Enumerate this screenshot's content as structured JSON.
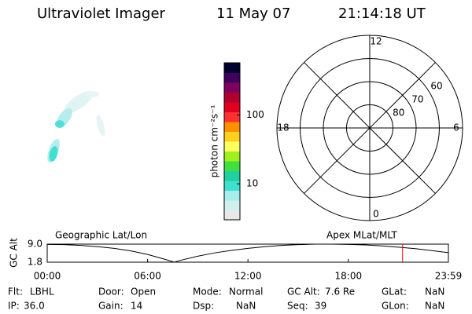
{
  "header": {
    "instrument": "Ultraviolet Imager",
    "date": "11 May 07",
    "time": "21:14:18 UT"
  },
  "chart_data": [
    {
      "type": "colorbar",
      "label": "photon cm⁻²s⁻¹",
      "log_scale": true,
      "ylim": [
        3,
        575
      ],
      "yticks": [
        10,
        100
      ],
      "colors": [
        "#e8e8e8",
        "#d0f0f0",
        "#a8ecec",
        "#40e0d0",
        "#20d0a0",
        "#40e040",
        "#a0f020",
        "#ffff60",
        "#ffd020",
        "#ff9000",
        "#ff3030",
        "#e00020",
        "#b00030",
        "#800060",
        "#400060",
        "#000030"
      ]
    },
    {
      "type": "polar",
      "mlt_ticks": [
        12,
        6,
        0,
        18
      ],
      "rlim": [
        90,
        50
      ],
      "rticks": [
        80,
        70,
        60
      ]
    },
    {
      "type": "line",
      "title_left": "Geographic Lat/Lon",
      "title_right": "Apex MLat/MLT",
      "ylabel": "GC Alt",
      "x": [
        0,
        1,
        2,
        3,
        4,
        5,
        6,
        7,
        7.6,
        8,
        9,
        10,
        11,
        12,
        13,
        14,
        15,
        16,
        17,
        18,
        19,
        20,
        21,
        22,
        23,
        23.98
      ],
      "values": [
        8.9,
        8.8,
        8.5,
        8.0,
        7.3,
        6.3,
        4.9,
        3.0,
        1.8,
        2.6,
        4.2,
        5.5,
        6.5,
        7.3,
        8.0,
        8.5,
        8.8,
        9.0,
        9.0,
        8.9,
        8.7,
        8.3,
        7.8,
        7.2,
        6.4,
        5.6
      ],
      "color": "#000000",
      "marker_x": 21.24,
      "marker_color": "#ff0000",
      "xlim": [
        0,
        23.98
      ],
      "xticks": [
        {
          "value": 0,
          "label": "00:00"
        },
        {
          "value": 6,
          "label": "06:00"
        },
        {
          "value": 12,
          "label": "12:00"
        },
        {
          "value": 18,
          "label": "18:00"
        },
        {
          "value": 23.98,
          "label": "23:59"
        }
      ],
      "ylim": [
        1.8,
        9.0
      ],
      "yticks": [
        {
          "value": 9.0,
          "label": "9.0"
        },
        1.8
      ]
    }
  ],
  "footer": {
    "rows": [
      [
        {
          "label": "Flt:",
          "value": "LBHL"
        },
        {
          "label": "Door:",
          "value": "Open"
        },
        {
          "label": "Mode:",
          "value": "Normal"
        },
        {
          "label": "GC Alt:",
          "value": "7.6 Re"
        },
        {
          "label": "GLat:",
          "value": "NaN"
        }
      ],
      [
        {
          "label": "IP:",
          "value": "36.0"
        },
        {
          "label": "Gain:",
          "value": "14"
        },
        {
          "label": "Dsp:",
          "value": "NaN"
        },
        {
          "label": "Seq:",
          "value": "39"
        },
        {
          "label": "GLon:",
          "value": "NaN"
        }
      ]
    ]
  }
}
